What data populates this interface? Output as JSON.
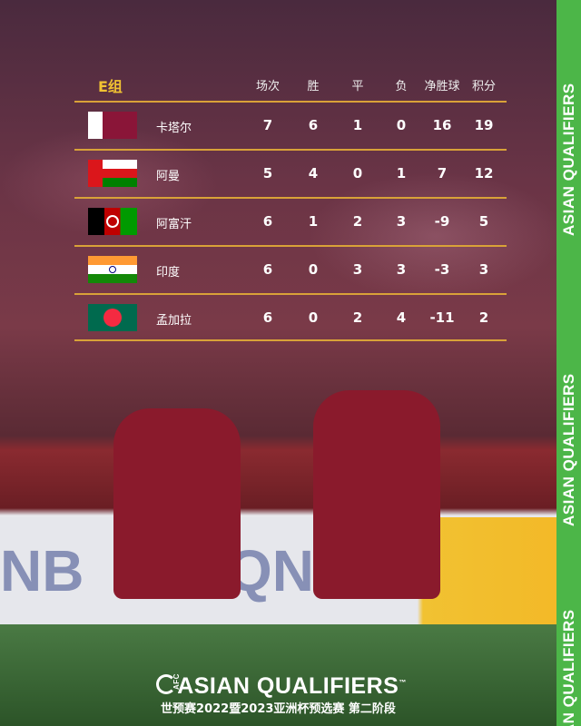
{
  "table": {
    "group": "E组",
    "headers": [
      "场次",
      "胜",
      "平",
      "负",
      "净胜球",
      "积分"
    ],
    "rows": [
      {
        "team": "卡塔尔",
        "flag": "qatar-flag",
        "values": [
          "7",
          "6",
          "1",
          "0",
          "16",
          "19"
        ]
      },
      {
        "team": "阿曼",
        "flag": "oman-flag",
        "values": [
          "5",
          "4",
          "0",
          "1",
          "7",
          "12"
        ]
      },
      {
        "team": "阿富汗",
        "flag": "afghanistan-flag",
        "values": [
          "6",
          "1",
          "2",
          "3",
          "-9",
          "5"
        ]
      },
      {
        "team": "印度",
        "flag": "india-flag",
        "values": [
          "6",
          "0",
          "3",
          "3",
          "-3",
          "3"
        ]
      },
      {
        "team": "孟加拉",
        "flag": "bangladesh-flag",
        "values": [
          "6",
          "0",
          "2",
          "4",
          "-11",
          "2"
        ]
      }
    ]
  },
  "footer": {
    "logo_text": "ASIAN QUALIFIERS",
    "afc": "AFC",
    "tm": "™",
    "subtitle": "世预赛2022暨2023亚洲杯预选赛 第二阶段"
  },
  "strip": {
    "text": "ASIAN QUALIFIERS",
    "color": "#4cb648"
  },
  "colors": {
    "accent": "#f1c232",
    "divider": "#d9a238"
  }
}
